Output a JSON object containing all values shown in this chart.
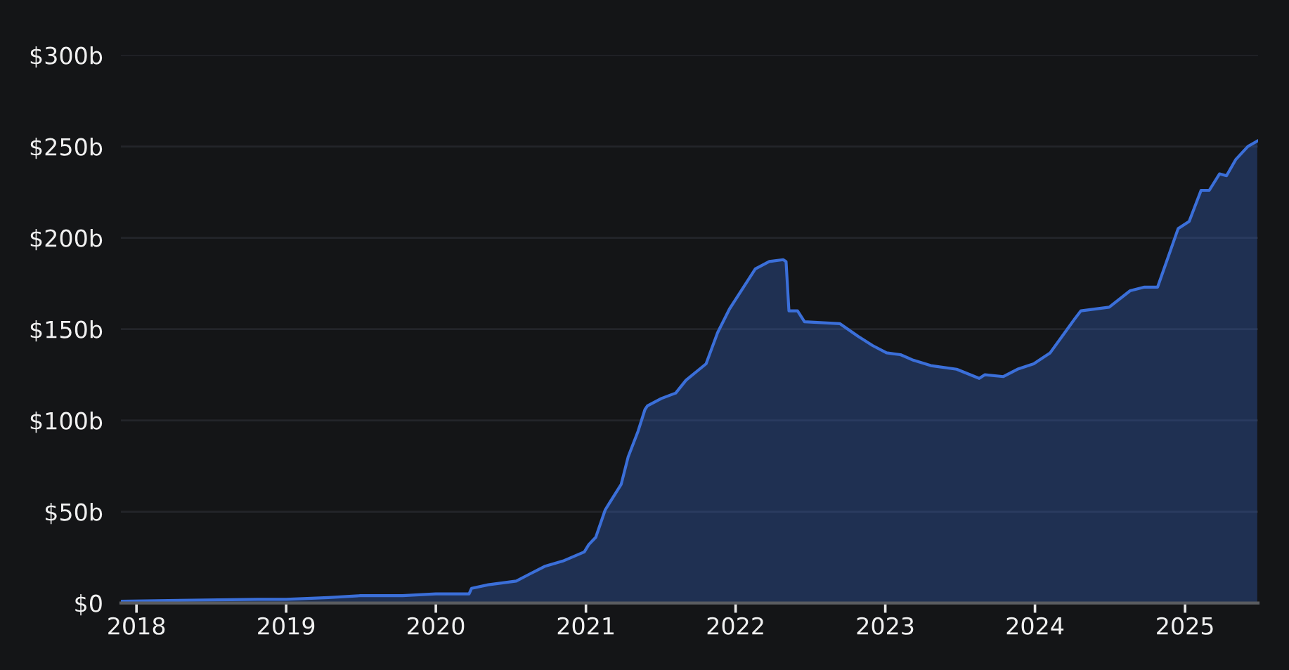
{
  "chart_data": {
    "type": "area",
    "x": [
      "2017-11-24",
      "2018-10-24",
      "2019-01-01",
      "2019-04-14",
      "2019-07-01",
      "2019-10-12",
      "2020-01-01",
      "2020-03-22",
      "2020-03-28",
      "2020-05-08",
      "2020-07-15",
      "2020-08-18",
      "2020-09-22",
      "2020-11-06",
      "2020-12-28",
      "2021-01-08",
      "2021-01-25",
      "2021-02-17",
      "2021-02-28",
      "2021-03-28",
      "2021-04-14",
      "2021-05-08",
      "2021-05-25",
      "2021-05-31",
      "2021-07-04",
      "2021-08-08",
      "2021-09-02",
      "2021-10-21",
      "2021-11-18",
      "2021-12-17",
      "2022-01-09",
      "2022-02-18",
      "2022-03-24",
      "2022-04-27",
      "2022-05-04",
      "2022-05-11",
      "2022-06-01",
      "2022-06-18",
      "2022-09-12",
      "2022-10-27",
      "2022-12-01",
      "2023-01-04",
      "2023-02-07",
      "2023-03-10",
      "2023-04-22",
      "2023-06-24",
      "2023-08-18",
      "2023-09-01",
      "2023-10-16",
      "2023-11-19",
      "2023-12-29",
      "2024-02-07",
      "2024-03-07",
      "2024-04-05",
      "2024-04-22",
      "2024-06-30",
      "2024-08-20",
      "2024-09-24",
      "2024-10-26",
      "2024-11-20",
      "2024-12-15",
      "2025-01-11",
      "2025-02-09",
      "2025-03-01",
      "2025-03-26",
      "2025-04-12",
      "2025-05-05",
      "2025-06-03",
      "2025-06-26"
    ],
    "series": [
      {
        "color": "#3b6fd9",
        "values": [
          1,
          2,
          2,
          3,
          4,
          4,
          5,
          5,
          8,
          10,
          12,
          16,
          20,
          23,
          28,
          32,
          36,
          51,
          55,
          65,
          80,
          94,
          106,
          108,
          112,
          115,
          122,
          131,
          148,
          161,
          169,
          183,
          187,
          188,
          187,
          160,
          160,
          154,
          153,
          146,
          141,
          137,
          136,
          133,
          130,
          128,
          123,
          125,
          124,
          128,
          131,
          137,
          146,
          155,
          160,
          162,
          171,
          173,
          173,
          189,
          205,
          209,
          226,
          226,
          235,
          234,
          243,
          250,
          253
        ]
      }
    ],
    "xlim": [
      "2017-11-24",
      "2025-06-28"
    ],
    "xticks": [
      "2018",
      "2019",
      "2020",
      "2021",
      "2022",
      "2023",
      "2024",
      "2025"
    ],
    "ylim": [
      0,
      300
    ],
    "yticks": [
      {
        "value": 0,
        "label": "$0"
      },
      {
        "value": 50,
        "label": "$50b"
      },
      {
        "value": 100,
        "label": "$100b"
      },
      {
        "value": 150,
        "label": "$150b"
      },
      {
        "value": 200,
        "label": "$200b"
      },
      {
        "value": 250,
        "label": "$250b"
      },
      {
        "value": 300,
        "label": "$300b"
      }
    ],
    "grid": "y"
  }
}
